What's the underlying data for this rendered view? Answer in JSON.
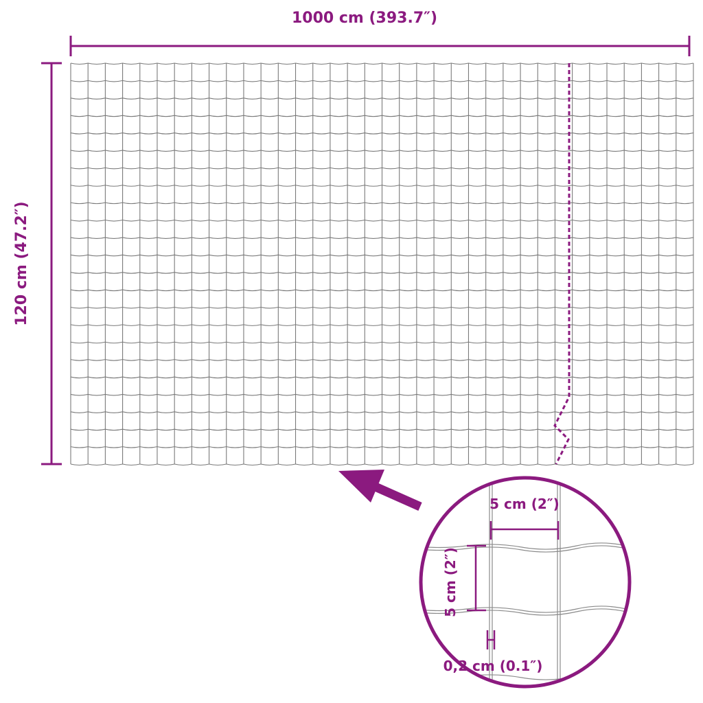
{
  "dimensions": {
    "width_label": "1000 cm (393.7″)",
    "height_label": "120 cm (47.2″)",
    "mesh_width_label": "5 cm (2″)",
    "mesh_height_label": "5 cm (2″)",
    "wire_label": "0,2 cm (0.1″)"
  },
  "colors": {
    "accent": "#8b1a7f",
    "wire": "#7a7a7a"
  }
}
